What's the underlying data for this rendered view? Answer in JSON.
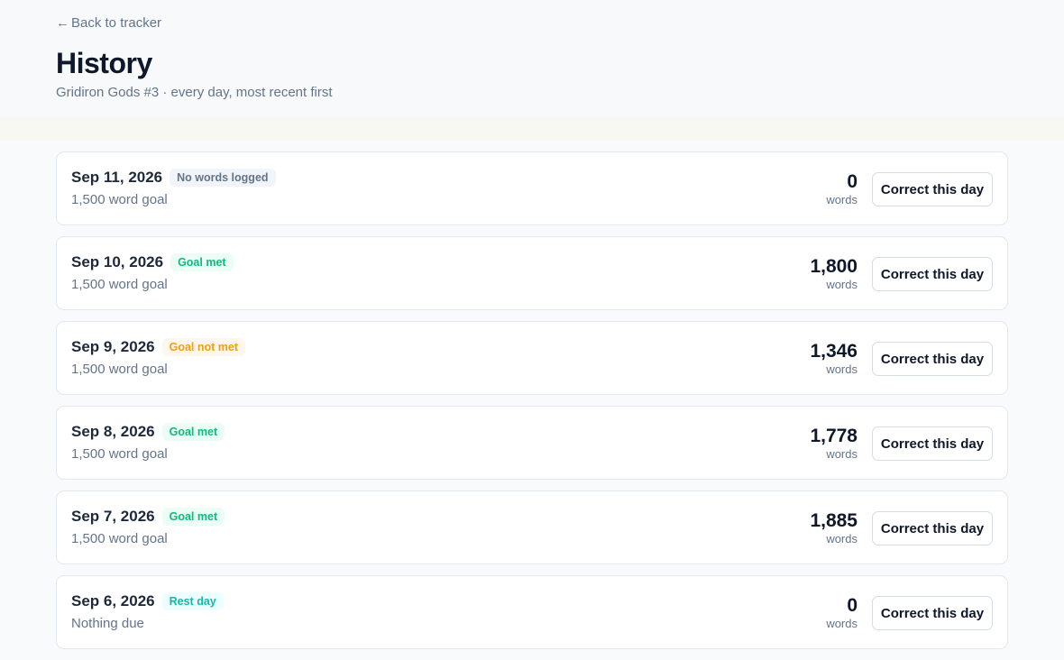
{
  "nav": {
    "back_label": "Back to tracker",
    "back_arrow": "←"
  },
  "page": {
    "title": "History",
    "subtitle": "Gridiron Gods #3 · every day, most recent first"
  },
  "days": [
    {
      "date": "Sep 11, 2026",
      "status": "No words logged",
      "status_kind": "none",
      "goal": "1,500 word goal",
      "count": "0",
      "unit": "words",
      "action": "Correct this day"
    },
    {
      "date": "Sep 10, 2026",
      "status": "Goal met",
      "status_kind": "met",
      "goal": "1,500 word goal",
      "count": "1,800",
      "unit": "words",
      "action": "Correct this day"
    },
    {
      "date": "Sep 9, 2026",
      "status": "Goal not met",
      "status_kind": "notmet",
      "goal": "1,500 word goal",
      "count": "1,346",
      "unit": "words",
      "action": "Correct this day"
    },
    {
      "date": "Sep 8, 2026",
      "status": "Goal met",
      "status_kind": "met",
      "goal": "1,500 word goal",
      "count": "1,778",
      "unit": "words",
      "action": "Correct this day"
    },
    {
      "date": "Sep 7, 2026",
      "status": "Goal met",
      "status_kind": "met",
      "goal": "1,500 word goal",
      "count": "1,885",
      "unit": "words",
      "action": "Correct this day"
    },
    {
      "date": "Sep 6, 2026",
      "status": "Rest day",
      "status_kind": "rest",
      "goal": "Nothing due",
      "count": "0",
      "unit": "words",
      "action": "Correct this day"
    }
  ],
  "colors": {
    "badge_met": "#10b981",
    "badge_notmet": "#f59e0b",
    "badge_rest": "#14b8a6",
    "badge_none": "#64748b"
  }
}
